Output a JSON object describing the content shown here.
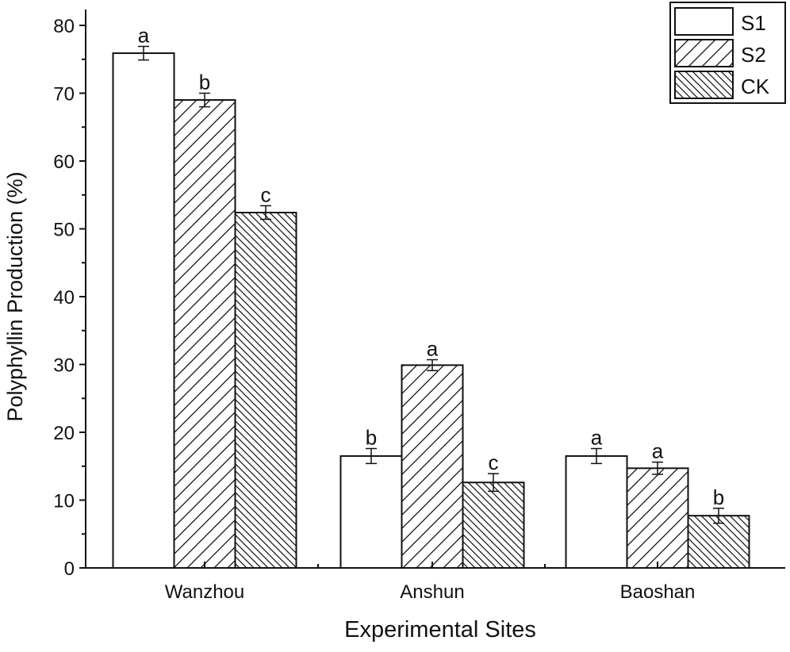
{
  "chart_data": {
    "type": "bar",
    "title": "",
    "xlabel": "Experimental Sites",
    "ylabel": "Polyphyllin Production (%)",
    "ylim": [
      0,
      80
    ],
    "yticks": [
      0,
      10,
      20,
      30,
      40,
      50,
      60,
      70,
      80
    ],
    "categories": [
      "Wanzhou",
      "Anshun",
      "Baoshan"
    ],
    "grid": false,
    "legend_position": "top-right",
    "series": [
      {
        "name": "S1",
        "pattern": "none",
        "values": [
          75.9,
          16.5,
          16.5
        ],
        "errors": [
          1.0,
          1.1,
          1.1
        ],
        "labels": [
          "a",
          "b",
          "a"
        ]
      },
      {
        "name": "S2",
        "pattern": "forward-diagonal",
        "values": [
          69.0,
          29.9,
          14.7
        ],
        "errors": [
          1.0,
          0.8,
          0.9
        ],
        "labels": [
          "b",
          "a",
          "a"
        ]
      },
      {
        "name": "CK",
        "pattern": "back-diagonal",
        "values": [
          52.4,
          12.6,
          7.7
        ],
        "errors": [
          1.0,
          1.3,
          1.1
        ],
        "labels": [
          "c",
          "c",
          "b"
        ]
      }
    ]
  }
}
